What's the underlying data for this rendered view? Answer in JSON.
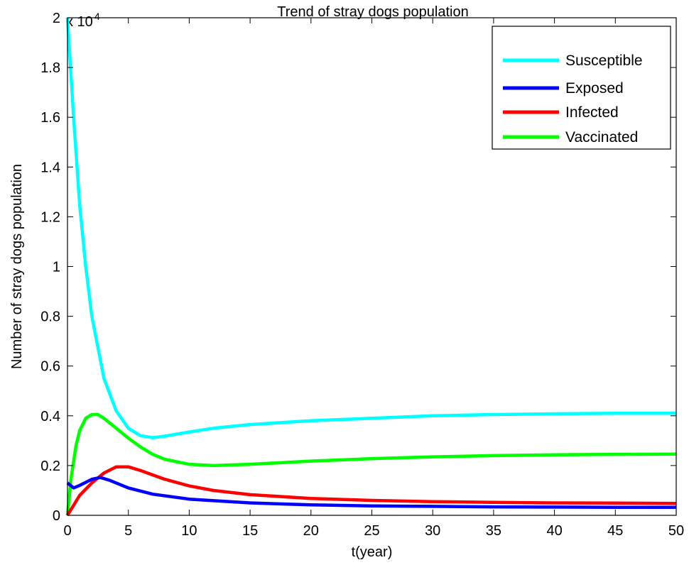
{
  "chart_data": {
    "type": "line",
    "title": "Trend of stray dogs population",
    "xlabel": "t(year)",
    "ylabel": "Number of stray dogs population",
    "multiplier_label": "x 10",
    "multiplier_exponent": "4",
    "xlim": [
      0,
      50
    ],
    "ylim": [
      0,
      2
    ],
    "x_ticks": [
      0,
      5,
      10,
      15,
      20,
      25,
      30,
      35,
      40,
      45,
      50
    ],
    "x_tick_labels": [
      "0",
      "5",
      "10",
      "15",
      "20",
      "25",
      "30",
      "35",
      "40",
      "45",
      "50"
    ],
    "y_ticks": [
      0,
      0.2,
      0.4,
      0.6,
      0.8,
      1,
      1.2,
      1.4,
      1.6,
      1.8,
      2
    ],
    "y_tick_labels": [
      "0",
      "0.2",
      "0.4",
      "0.6",
      "0.8",
      "1",
      "1.2",
      "1.4",
      "1.6",
      "1.8",
      "2"
    ],
    "grid": false,
    "legend_position": "top-right",
    "series": [
      {
        "name": "Susceptible",
        "color": "#00ffff",
        "x": [
          0,
          0.5,
          1,
          1.5,
          2,
          3,
          4,
          5,
          6,
          7,
          8,
          10,
          12,
          15,
          20,
          25,
          30,
          35,
          40,
          45,
          50
        ],
        "y": [
          2.0,
          1.6,
          1.25,
          1.0,
          0.8,
          0.55,
          0.42,
          0.35,
          0.32,
          0.312,
          0.318,
          0.335,
          0.35,
          0.365,
          0.38,
          0.39,
          0.4,
          0.405,
          0.408,
          0.41,
          0.41
        ]
      },
      {
        "name": "Exposed",
        "color": "#0000ff",
        "x": [
          0,
          0.5,
          1,
          2,
          2.7,
          3.5,
          5,
          7,
          10,
          15,
          20,
          25,
          30,
          35,
          40,
          45,
          50
        ],
        "y": [
          0.13,
          0.11,
          0.12,
          0.145,
          0.152,
          0.14,
          0.11,
          0.085,
          0.065,
          0.05,
          0.042,
          0.038,
          0.036,
          0.034,
          0.033,
          0.032,
          0.032
        ]
      },
      {
        "name": "Infected",
        "color": "#ff0000",
        "x": [
          0,
          0.5,
          1,
          2,
          3,
          4,
          5,
          6,
          8,
          10,
          12,
          15,
          20,
          25,
          30,
          35,
          40,
          45,
          50
        ],
        "y": [
          0.0,
          0.04,
          0.08,
          0.13,
          0.17,
          0.195,
          0.195,
          0.18,
          0.145,
          0.118,
          0.1,
          0.083,
          0.068,
          0.06,
          0.055,
          0.052,
          0.05,
          0.049,
          0.048
        ]
      },
      {
        "name": "Vaccinated",
        "color": "#00ff00",
        "x": [
          0,
          0.3,
          0.7,
          1,
          1.5,
          2,
          2.5,
          3,
          4,
          5,
          6,
          7,
          8,
          10,
          12,
          15,
          20,
          25,
          30,
          35,
          40,
          45,
          50
        ],
        "y": [
          0.0,
          0.15,
          0.28,
          0.34,
          0.39,
          0.405,
          0.405,
          0.39,
          0.35,
          0.31,
          0.275,
          0.245,
          0.225,
          0.205,
          0.2,
          0.205,
          0.218,
          0.228,
          0.235,
          0.24,
          0.243,
          0.245,
          0.246
        ]
      }
    ]
  }
}
